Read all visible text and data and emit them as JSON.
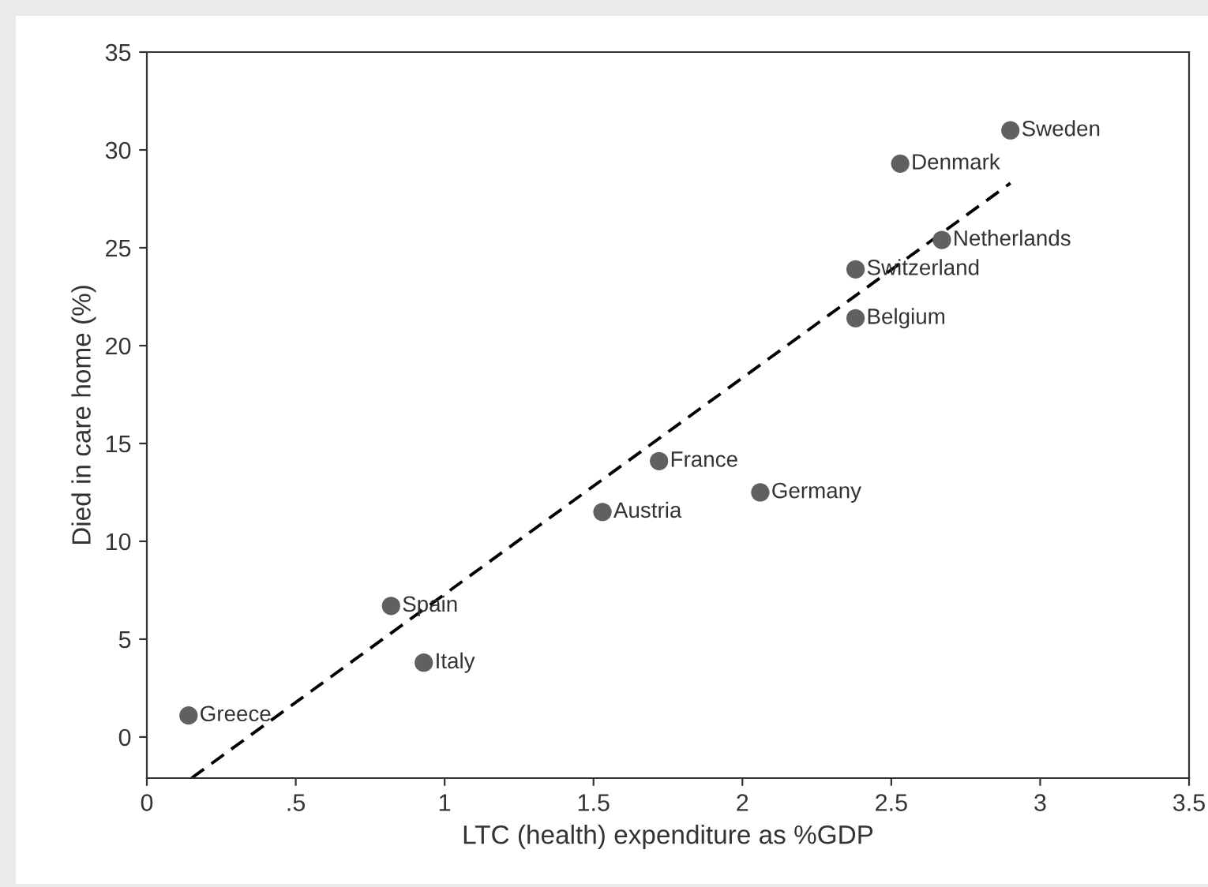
{
  "chart_data": {
    "type": "scatter",
    "xlabel": "LTC (health) expenditure as %GDP",
    "ylabel": "Died in care home (%)",
    "xlim": [
      0,
      3.5
    ],
    "ylim": [
      -2.1,
      35
    ],
    "xticks": [
      0,
      {
        "value": 0.5,
        "label": ".5"
      },
      1,
      1.5,
      2,
      2.5,
      3,
      3.5
    ],
    "yticks": [
      0,
      5,
      10,
      15,
      20,
      25,
      30,
      35
    ],
    "grid": false,
    "legend": false,
    "marker": "circle",
    "series": [
      {
        "color": "#606060",
        "x": [
          2.9,
          2.53,
          2.67,
          2.38,
          2.38,
          1.72,
          2.06,
          1.53,
          0.82,
          0.93,
          0.14
        ],
        "values": [
          31.0,
          29.3,
          25.4,
          23.9,
          21.4,
          14.1,
          12.5,
          11.5,
          6.7,
          3.8,
          1.1
        ],
        "value_labels": [
          "Sweden",
          "Denmark",
          "Netherlands",
          "Switzerland",
          "Belgium",
          "France",
          "Germany",
          "Austria",
          "Spain",
          "Italy",
          "Greece"
        ]
      },
      {
        "type": "line",
        "color": "#000000",
        "line_style": "dashed",
        "marker": "none",
        "x": [
          0.15,
          2.9
        ],
        "values": [
          -2.1,
          28.3
        ]
      }
    ]
  }
}
